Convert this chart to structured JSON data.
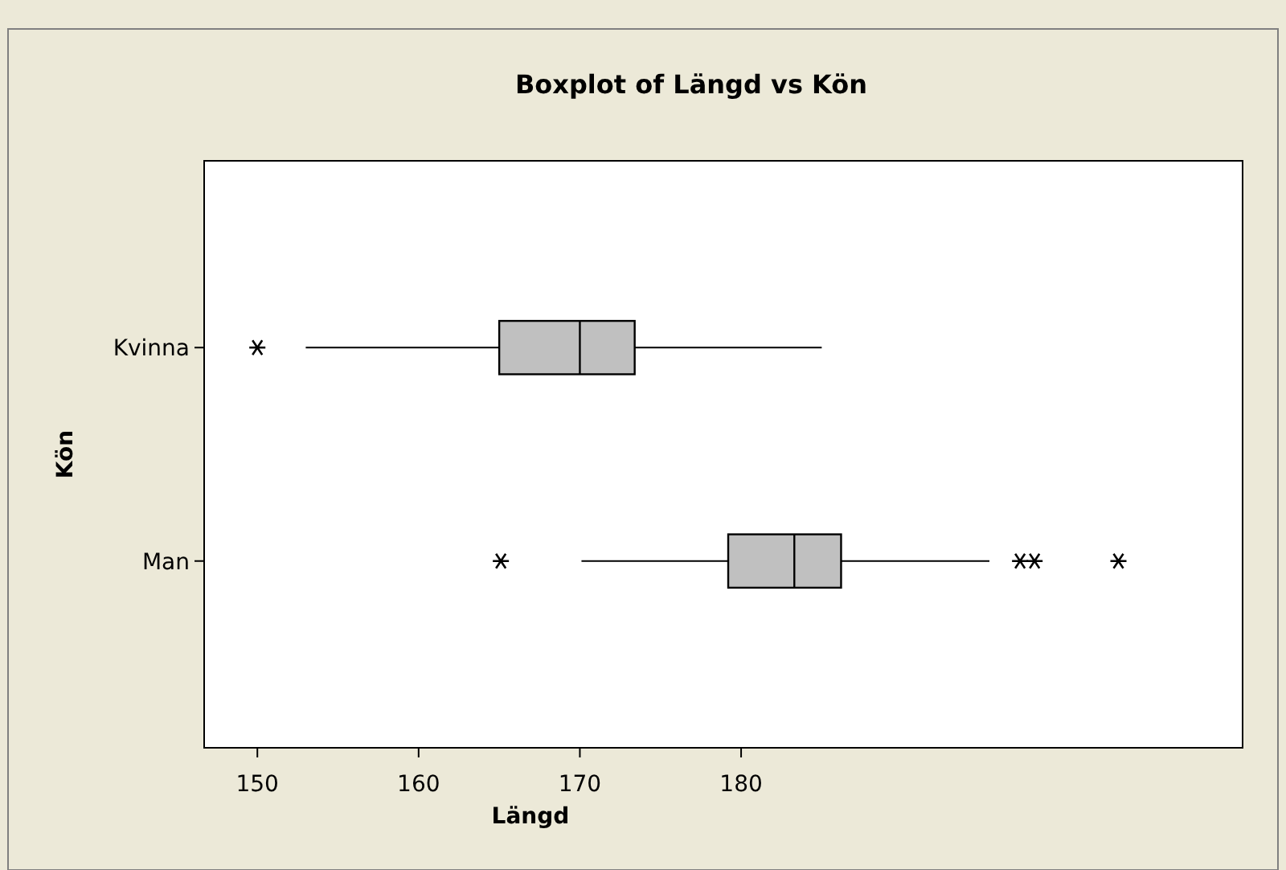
{
  "chart_data": {
    "type": "box",
    "title": "Boxplot of Längd vs Kön",
    "xlabel": "Längd",
    "ylabel": "Kön",
    "orientation": "horizontal",
    "categories": [
      "Kvinna",
      "Man"
    ],
    "color": "#c0c0c0",
    "boxes": [
      {
        "low": 153,
        "q1": 165,
        "median": 170,
        "q3": 173.4,
        "high": 185,
        "outliers": [
          150
        ]
      },
      {
        "low": 170.1,
        "q1": 179.2,
        "median": 183.3,
        "q3": 186.2,
        "high": 195.4,
        "outliers": [
          165.1,
          197.3,
          198.2,
          203.4
        ]
      }
    ],
    "xlim": [
      146.7,
      211.1
    ],
    "xticks": [
      150,
      160,
      170,
      180
    ],
    "grid": false
  }
}
